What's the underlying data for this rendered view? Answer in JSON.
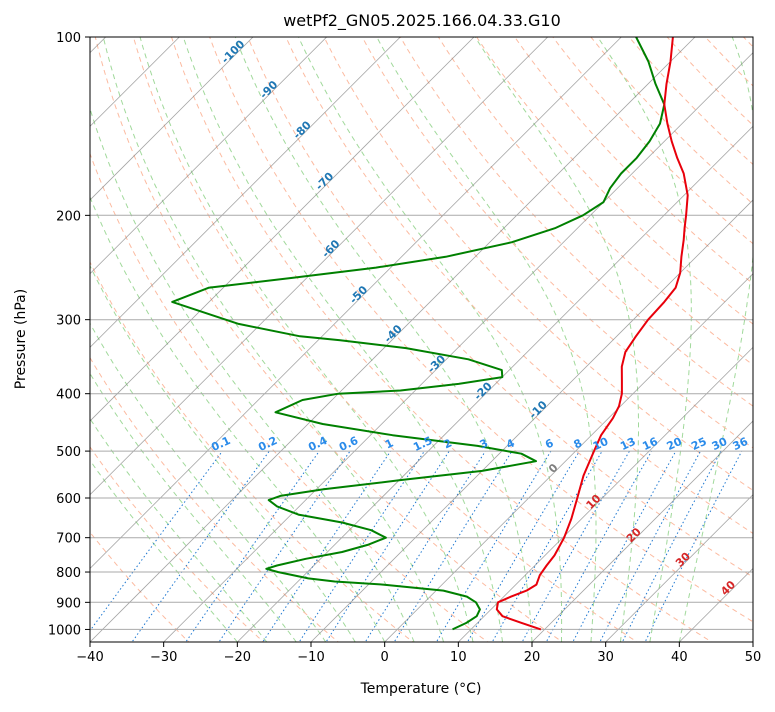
{
  "chart_data": {
    "type": "line",
    "subtype": "skew-t log-p",
    "title": "wetPf2_GN05.2025.166.04.33.G10",
    "xlabel": "Temperature (°C)",
    "ylabel": "Pressure (hPa)",
    "xlim": [
      -40,
      50
    ],
    "ylim": [
      1050,
      100
    ],
    "y_scale": "log",
    "x_ticks": [
      "−40",
      "−30",
      "−20",
      "−10",
      "0",
      "10",
      "20",
      "30",
      "40",
      "50"
    ],
    "x_tick_values": [
      -40,
      -30,
      -20,
      -10,
      0,
      10,
      20,
      30,
      40,
      50
    ],
    "y_ticks": [
      "100",
      "200",
      "300",
      "400",
      "500",
      "600",
      "700",
      "800",
      "900",
      "1000"
    ],
    "y_tick_values": [
      100,
      200,
      300,
      400,
      500,
      600,
      700,
      800,
      900,
      1000
    ],
    "grid": true,
    "series": [
      {
        "role": "temperature",
        "color": "#e8000b",
        "points": [
          [
            1000,
            19.5
          ],
          [
            975,
            16
          ],
          [
            950,
            12.5
          ],
          [
            925,
            10.8
          ],
          [
            900,
            10
          ],
          [
            880,
            11
          ],
          [
            860,
            12.3
          ],
          [
            840,
            12.8
          ],
          [
            810,
            12
          ],
          [
            780,
            11.6
          ],
          [
            750,
            11.3
          ],
          [
            700,
            10.2
          ],
          [
            650,
            8.6
          ],
          [
            600,
            6.6
          ],
          [
            550,
            4.4
          ],
          [
            500,
            2.5
          ],
          [
            470,
            1.3
          ],
          [
            440,
            0.6
          ],
          [
            420,
            -0.2
          ],
          [
            400,
            -1.5
          ],
          [
            380,
            -3.3
          ],
          [
            360,
            -5.2
          ],
          [
            340,
            -6.7
          ],
          [
            320,
            -7.4
          ],
          [
            300,
            -8
          ],
          [
            280,
            -8.2
          ],
          [
            265,
            -8.6
          ],
          [
            250,
            -10
          ],
          [
            235,
            -12
          ],
          [
            220,
            -14
          ],
          [
            210,
            -15.5
          ],
          [
            200,
            -17
          ],
          [
            185,
            -19.5
          ],
          [
            170,
            -23
          ],
          [
            160,
            -26
          ],
          [
            150,
            -29
          ],
          [
            140,
            -32
          ],
          [
            130,
            -35
          ],
          [
            120,
            -37.5
          ],
          [
            110,
            -40
          ],
          [
            100,
            -43
          ]
        ]
      },
      {
        "role": "dewpoint",
        "color": "#008000",
        "points": [
          [
            1000,
            7.5
          ],
          [
            975,
            8.5
          ],
          [
            950,
            9
          ],
          [
            925,
            8.5
          ],
          [
            900,
            7
          ],
          [
            880,
            5
          ],
          [
            860,
            1
          ],
          [
            840,
            -8
          ],
          [
            830,
            -15
          ],
          [
            820,
            -19
          ],
          [
            800,
            -24
          ],
          [
            790,
            -26
          ],
          [
            780,
            -25
          ],
          [
            760,
            -22
          ],
          [
            740,
            -18
          ],
          [
            720,
            -15.5
          ],
          [
            700,
            -14
          ],
          [
            680,
            -17
          ],
          [
            660,
            -22
          ],
          [
            640,
            -29
          ],
          [
            620,
            -33
          ],
          [
            605,
            -35
          ],
          [
            595,
            -34
          ],
          [
            580,
            -29
          ],
          [
            560,
            -20
          ],
          [
            540,
            -10
          ],
          [
            520,
            -4
          ],
          [
            505,
            -7
          ],
          [
            490,
            -14
          ],
          [
            470,
            -27
          ],
          [
            450,
            -38
          ],
          [
            430,
            -46
          ],
          [
            410,
            -44
          ],
          [
            400,
            -40
          ],
          [
            395,
            -32
          ],
          [
            385,
            -25
          ],
          [
            375,
            -20
          ],
          [
            365,
            -21
          ],
          [
            350,
            -27
          ],
          [
            335,
            -37
          ],
          [
            325,
            -47
          ],
          [
            320,
            -53
          ],
          [
            305,
            -63
          ],
          [
            280,
            -75
          ],
          [
            265,
            -72
          ],
          [
            255,
            -62
          ],
          [
            245,
            -52
          ],
          [
            235,
            -44
          ],
          [
            222,
            -37
          ],
          [
            210,
            -33
          ],
          [
            200,
            -31
          ],
          [
            190,
            -30
          ],
          [
            180,
            -31
          ],
          [
            170,
            -31.5
          ],
          [
            160,
            -31.5
          ],
          [
            150,
            -32
          ],
          [
            140,
            -33
          ],
          [
            130,
            -35
          ],
          [
            120,
            -39
          ],
          [
            110,
            -43
          ],
          [
            100,
            -48
          ]
        ]
      }
    ],
    "annotations": {
      "dry_adiabats_color": "#fcbba1",
      "moist_adiabats_color": "#a1d99b",
      "mixing_ratio_color": "#1f78d1",
      "isotherm_color": "#808080",
      "iso_labels_blue": [
        {
          "t": -100,
          "label": "-100"
        },
        {
          "t": -90,
          "label": "-90"
        },
        {
          "t": -80,
          "label": "-80"
        },
        {
          "t": -70,
          "label": "-70"
        },
        {
          "t": -60,
          "label": "-60"
        },
        {
          "t": -50,
          "label": "-50"
        },
        {
          "t": -40,
          "label": "-40"
        },
        {
          "t": -30,
          "label": "-30"
        },
        {
          "t": -20,
          "label": "-20"
        },
        {
          "t": -10,
          "label": "-10"
        }
      ],
      "iso_labels_red": [
        {
          "t": 10,
          "label": "10"
        },
        {
          "t": 20,
          "label": "20"
        },
        {
          "t": 30,
          "label": "30"
        },
        {
          "t": 40,
          "label": "40"
        }
      ],
      "iso_label_zero": {
        "t": 0,
        "label": "0"
      },
      "mixing_ratios": [
        {
          "w": 0.1,
          "label": "0.1"
        },
        {
          "w": 0.2,
          "label": "0.2"
        },
        {
          "w": 0.4,
          "label": "0.4"
        },
        {
          "w": 0.6,
          "label": "0.6"
        },
        {
          "w": 1,
          "label": "1"
        },
        {
          "w": 1.5,
          "label": "1.5"
        },
        {
          "w": 2,
          "label": "2"
        },
        {
          "w": 3,
          "label": "3"
        },
        {
          "w": 4,
          "label": "4"
        },
        {
          "w": 6,
          "label": "6"
        },
        {
          "w": 8,
          "label": "8"
        },
        {
          "w": 10,
          "label": "10"
        },
        {
          "w": 13,
          "label": "13"
        },
        {
          "w": 16,
          "label": "16"
        },
        {
          "w": 20,
          "label": "20"
        },
        {
          "w": 25,
          "label": "25"
        },
        {
          "w": 30,
          "label": "30"
        },
        {
          "w": 36,
          "label": "36"
        }
      ]
    }
  }
}
